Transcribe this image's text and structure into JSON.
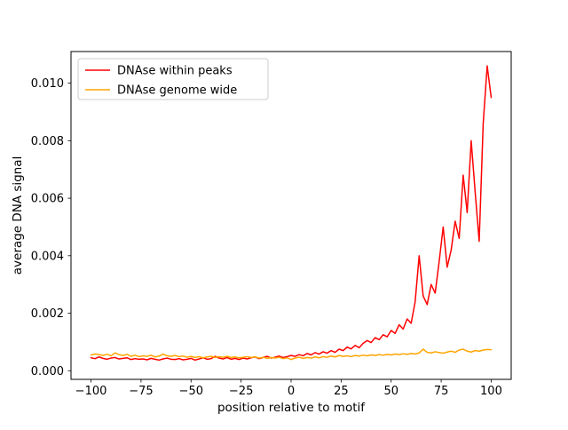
{
  "chart_data": {
    "type": "line",
    "title": "",
    "xlabel": "position relative to motif",
    "ylabel": "average DNA signal",
    "xlim": [
      -110,
      110
    ],
    "ylim": [
      -0.0003,
      0.0111
    ],
    "grid": false,
    "legend_position": "upper left",
    "xticks": [
      -100,
      -75,
      -50,
      -25,
      0,
      25,
      50,
      75,
      100
    ],
    "xtick_labels": [
      "−100",
      "−75",
      "−50",
      "−25",
      "0",
      "25",
      "50",
      "75",
      "100"
    ],
    "yticks": [
      0.0,
      0.002,
      0.004,
      0.006,
      0.008,
      0.01
    ],
    "ytick_labels": [
      "0.000",
      "0.002",
      "0.004",
      "0.006",
      "0.008",
      "0.010"
    ],
    "x": [
      -100,
      -98,
      -96,
      -94,
      -92,
      -90,
      -88,
      -86,
      -84,
      -82,
      -80,
      -78,
      -76,
      -74,
      -72,
      -70,
      -68,
      -66,
      -64,
      -62,
      -60,
      -58,
      -56,
      -54,
      -52,
      -50,
      -48,
      -46,
      -44,
      -42,
      -40,
      -38,
      -36,
      -34,
      -32,
      -30,
      -28,
      -26,
      -24,
      -22,
      -20,
      -18,
      -16,
      -14,
      -12,
      -10,
      -8,
      -6,
      -4,
      -2,
      0,
      2,
      4,
      6,
      8,
      10,
      12,
      14,
      16,
      18,
      20,
      22,
      24,
      26,
      28,
      30,
      32,
      34,
      36,
      38,
      40,
      42,
      44,
      46,
      48,
      50,
      52,
      54,
      56,
      58,
      60,
      62,
      64,
      66,
      68,
      70,
      72,
      74,
      76,
      78,
      80,
      82,
      84,
      86,
      88,
      90,
      92,
      94,
      96,
      98,
      100
    ],
    "series": [
      {
        "name": "DNAse within peaks",
        "color": "#ff0000",
        "values": [
          0.00045,
          0.00042,
          0.00048,
          0.00043,
          0.0004,
          0.00044,
          0.00046,
          0.00041,
          0.00043,
          0.00045,
          0.00039,
          0.00042,
          0.0004,
          0.00041,
          0.00038,
          0.00043,
          0.0004,
          0.00037,
          0.00041,
          0.00044,
          0.0004,
          0.00039,
          0.00042,
          0.00038,
          0.0004,
          0.00043,
          0.00037,
          0.00041,
          0.00045,
          0.0004,
          0.00042,
          0.0005,
          0.00044,
          0.00041,
          0.00046,
          0.0004,
          0.00043,
          0.00039,
          0.00044,
          0.00041,
          0.00045,
          0.00048,
          0.00042,
          0.00046,
          0.0005,
          0.00044,
          0.00047,
          0.00051,
          0.00046,
          0.00049,
          0.00053,
          0.0005,
          0.00056,
          0.00052,
          0.0006,
          0.00055,
          0.00063,
          0.00058,
          0.00066,
          0.00061,
          0.0007,
          0.00064,
          0.00075,
          0.0007,
          0.00082,
          0.00076,
          0.00088,
          0.0008,
          0.00095,
          0.00105,
          0.00098,
          0.00115,
          0.00108,
          0.00125,
          0.00118,
          0.0014,
          0.0013,
          0.0016,
          0.00145,
          0.0018,
          0.00165,
          0.0024,
          0.004,
          0.0026,
          0.0023,
          0.003,
          0.0027,
          0.0038,
          0.005,
          0.0036,
          0.0042,
          0.0052,
          0.0046,
          0.0068,
          0.0055,
          0.008,
          0.0062,
          0.0045,
          0.0086,
          0.0106,
          0.0095
        ]
      },
      {
        "name": "DNAse genome wide",
        "color": "#ffa500",
        "values": [
          0.00055,
          0.00058,
          0.00056,
          0.00053,
          0.00057,
          0.00052,
          0.00062,
          0.00056,
          0.00053,
          0.00057,
          0.0005,
          0.00054,
          0.00049,
          0.00052,
          0.0005,
          0.00054,
          0.00048,
          0.00051,
          0.00058,
          0.00052,
          0.0005,
          0.00053,
          0.00049,
          0.00051,
          0.00047,
          0.0005,
          0.00046,
          0.00049,
          0.00045,
          0.00048,
          0.0005,
          0.00046,
          0.00049,
          0.00047,
          0.0005,
          0.00046,
          0.00048,
          0.00045,
          0.00047,
          0.00049,
          0.00046,
          0.00048,
          0.00044,
          0.00047,
          0.00043,
          0.00046,
          0.00044,
          0.00047,
          0.00042,
          0.00045,
          0.00039,
          0.00044,
          0.00047,
          0.00043,
          0.00046,
          0.00044,
          0.00048,
          0.00045,
          0.00049,
          0.00047,
          0.00051,
          0.00048,
          0.00053,
          0.0005,
          0.00052,
          0.00049,
          0.00053,
          0.00051,
          0.00054,
          0.00052,
          0.00055,
          0.00053,
          0.00056,
          0.00054,
          0.00057,
          0.00055,
          0.00058,
          0.00056,
          0.00059,
          0.00057,
          0.0006,
          0.00058,
          0.00062,
          0.00075,
          0.00064,
          0.00062,
          0.00066,
          0.00063,
          0.00061,
          0.00065,
          0.00068,
          0.00064,
          0.00072,
          0.00075,
          0.00068,
          0.00065,
          0.0007,
          0.00068,
          0.00072,
          0.00074,
          0.00073
        ]
      }
    ],
    "legend": {
      "entries": [
        "DNAse within peaks",
        "DNAse genome wide"
      ]
    }
  }
}
